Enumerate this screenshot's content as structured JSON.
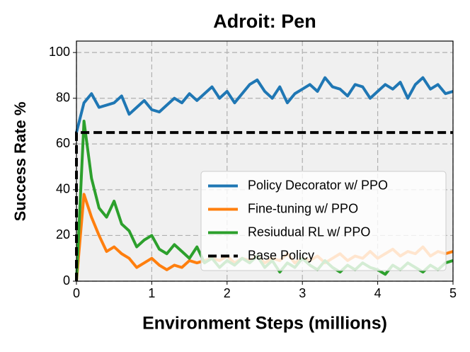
{
  "chart_data": {
    "type": "line",
    "title": "Adroit: Pen",
    "x_label": "Environment Steps (millions)",
    "y_label": "Success Rate %",
    "x": [
      0,
      0.1,
      0.2,
      0.3,
      0.4,
      0.5,
      0.6,
      0.7,
      0.8,
      0.9,
      1.0,
      1.1,
      1.2,
      1.3,
      1.4,
      1.5,
      1.6,
      1.7,
      1.8,
      1.9,
      2.0,
      2.1,
      2.2,
      2.3,
      2.4,
      2.5,
      2.6,
      2.7,
      2.8,
      2.9,
      3.0,
      3.1,
      3.2,
      3.3,
      3.4,
      3.5,
      3.6,
      3.7,
      3.8,
      3.9,
      4.0,
      4.1,
      4.2,
      4.3,
      4.4,
      4.5,
      4.6,
      4.7,
      4.8,
      4.9,
      5.0
    ],
    "series": [
      {
        "name": "Policy Decorator w/ PPO",
        "color": "#1f77b4",
        "values": [
          65,
          78,
          82,
          76,
          77,
          78,
          81,
          73,
          76,
          79,
          75,
          74,
          77,
          80,
          78,
          82,
          79,
          82,
          85,
          80,
          83,
          78,
          82,
          86,
          88,
          83,
          80,
          85,
          78,
          82,
          84,
          86,
          83,
          89,
          85,
          84,
          81,
          86,
          85,
          80,
          83,
          86,
          84,
          87,
          80,
          86,
          89,
          84,
          86,
          82,
          83
        ]
      },
      {
        "name": "Fine-tuning w/ PPO",
        "color": "#ff7f0e",
        "values": [
          0,
          38,
          28,
          20,
          13,
          15,
          12,
          10,
          6,
          8,
          10,
          7,
          5,
          7,
          6,
          9,
          8,
          9,
          10,
          9,
          11,
          8,
          10,
          9,
          11,
          8,
          10,
          9,
          12,
          8,
          10,
          9,
          11,
          8,
          10,
          12,
          9,
          11,
          10,
          13,
          10,
          12,
          14,
          11,
          13,
          12,
          15,
          11,
          13,
          12,
          13
        ]
      },
      {
        "name": "Resiudual RL w/ PPO",
        "color": "#2ca02c",
        "values": [
          0,
          70,
          45,
          32,
          28,
          35,
          25,
          22,
          15,
          18,
          20,
          14,
          12,
          16,
          13,
          10,
          15,
          8,
          10,
          6,
          9,
          7,
          10,
          8,
          11,
          6,
          9,
          4,
          8,
          6,
          10,
          7,
          5,
          9,
          6,
          4,
          7,
          5,
          8,
          6,
          5,
          3,
          7,
          5,
          8,
          6,
          4,
          7,
          5,
          8,
          9
        ]
      },
      {
        "name": "Base Policy",
        "color": "#000000",
        "dashed": true,
        "x": [
          0,
          0,
          5
        ],
        "values": [
          0,
          65,
          65
        ]
      }
    ],
    "xlim": [
      0,
      5
    ],
    "xticks": [
      0,
      1,
      2,
      3,
      4,
      5
    ],
    "ylim": [
      0,
      105
    ],
    "yticks": [
      0,
      20,
      40,
      60,
      80,
      100
    ],
    "grid": true,
    "legend": "lower right"
  }
}
